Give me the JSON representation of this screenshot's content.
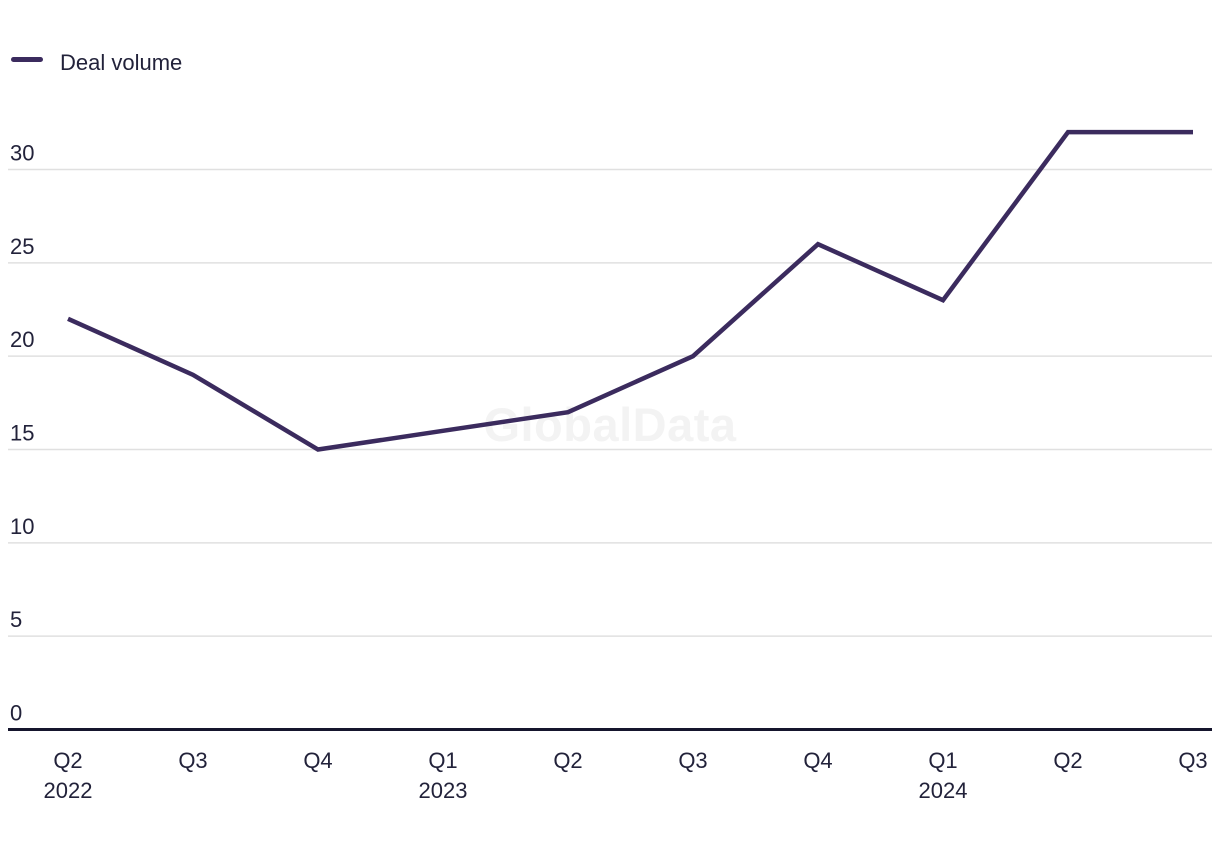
{
  "chart_data": {
    "type": "line",
    "title": "",
    "legend": {
      "label": "Deal volume",
      "position": "top-left"
    },
    "watermark": "GlobalData",
    "categories": [
      {
        "quarter": "Q2",
        "year": "2022"
      },
      {
        "quarter": "Q3"
      },
      {
        "quarter": "Q4"
      },
      {
        "quarter": "Q1",
        "year": "2023"
      },
      {
        "quarter": "Q2"
      },
      {
        "quarter": "Q3"
      },
      {
        "quarter": "Q4"
      },
      {
        "quarter": "Q1",
        "year": "2024"
      },
      {
        "quarter": "Q2"
      },
      {
        "quarter": "Q3"
      }
    ],
    "series": [
      {
        "name": "Deal volume",
        "values": [
          22,
          19,
          15,
          16,
          17,
          20,
          26,
          23,
          32,
          32
        ]
      }
    ],
    "yticks": [
      0,
      5,
      10,
      15,
      20,
      25,
      30
    ],
    "ylim": [
      0,
      33
    ],
    "grid": true,
    "colors": {
      "line": "#3b2b5e",
      "text": "#22223a",
      "grid": "#e0e0e0",
      "axis": "#15152d",
      "watermark": "#f3f3f3",
      "background": "#ffffff"
    }
  }
}
